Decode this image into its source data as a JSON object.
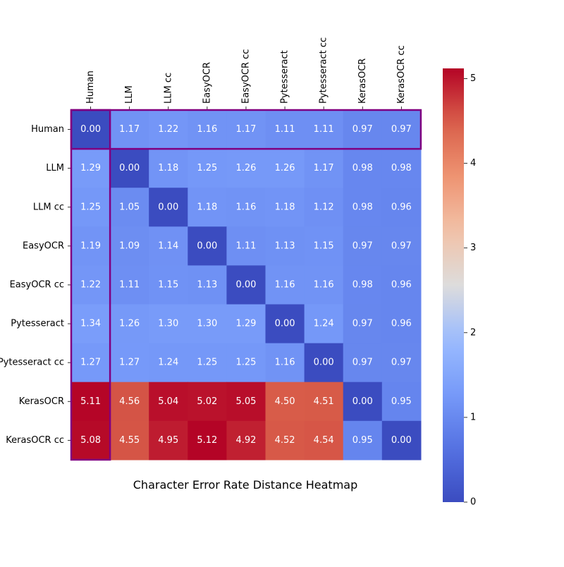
{
  "chart_data": {
    "type": "heatmap",
    "title": "Character Error Rate Distance Heatmap",
    "row_labels": [
      "Human",
      "LLM",
      "LLM cc",
      "EasyOCR",
      "EasyOCR cc",
      "Pytesseract",
      "Pytesseract cc",
      "KerasOCR",
      "KerasOCR cc"
    ],
    "col_labels": [
      "Human",
      "LLM",
      "LLM cc",
      "EasyOCR",
      "EasyOCR cc",
      "Pytesseract",
      "Pytesseract cc",
      "KerasOCR",
      "KerasOCR cc"
    ],
    "values": [
      [
        0.0,
        1.17,
        1.22,
        1.16,
        1.17,
        1.11,
        1.11,
        0.97,
        0.97
      ],
      [
        1.29,
        0.0,
        1.18,
        1.25,
        1.26,
        1.26,
        1.17,
        0.98,
        0.98
      ],
      [
        1.25,
        1.05,
        0.0,
        1.18,
        1.16,
        1.18,
        1.12,
        0.98,
        0.96
      ],
      [
        1.19,
        1.09,
        1.14,
        0.0,
        1.11,
        1.13,
        1.15,
        0.97,
        0.97
      ],
      [
        1.22,
        1.11,
        1.15,
        1.13,
        0.0,
        1.16,
        1.16,
        0.98,
        0.96
      ],
      [
        1.34,
        1.26,
        1.3,
        1.3,
        1.29,
        0.0,
        1.24,
        0.97,
        0.96
      ],
      [
        1.27,
        1.27,
        1.24,
        1.25,
        1.25,
        1.16,
        0.0,
        0.97,
        0.97
      ],
      [
        5.11,
        4.56,
        5.04,
        5.02,
        5.05,
        4.5,
        4.51,
        0.0,
        0.95
      ],
      [
        5.08,
        4.55,
        4.95,
        5.12,
        4.92,
        4.52,
        4.54,
        0.95,
        0.0
      ]
    ],
    "colormap": "coolwarm",
    "vmin": 0.0,
    "vmax": 5.12,
    "colorbar_ticks": [
      0,
      1,
      2,
      3,
      4,
      5
    ],
    "colorbar_tick_labels": [
      "0",
      "1",
      "2",
      "3",
      "4",
      "5"
    ],
    "highlight_color": "#800080",
    "highlights": [
      "row: Human",
      "column: Human"
    ],
    "x_tick_position": "top"
  }
}
